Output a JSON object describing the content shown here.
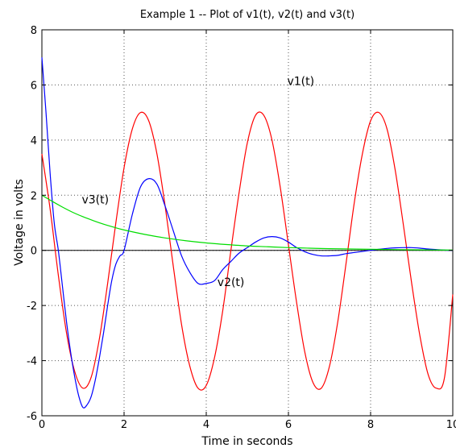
{
  "chart_data": {
    "type": "line",
    "title": "Example 1 -- Plot of v1(t), v2(t) and v3(t)",
    "xlabel": "Time in seconds",
    "ylabel": "Voltage in volts",
    "xlim": [
      0,
      10
    ],
    "ylim": [
      -6,
      8
    ],
    "xticks": [
      0,
      2,
      4,
      6,
      8,
      10
    ],
    "yticks": [
      -6,
      -4,
      -2,
      0,
      2,
      4,
      6,
      8
    ],
    "grid": true,
    "zero_line": true,
    "series": [
      {
        "name": "v1(t)",
        "color": "#ff0000",
        "x": [
          0,
          0.2,
          0.4,
          0.6,
          0.8,
          1.0,
          1.2,
          1.4,
          1.6,
          1.8,
          2.0,
          2.2,
          2.4,
          2.6,
          2.8,
          3.0,
          3.2,
          3.4,
          3.6,
          3.8,
          4.0,
          4.2,
          4.4,
          4.6,
          4.8,
          5.0,
          5.2,
          5.4,
          5.6,
          5.8,
          6.0,
          6.2,
          6.4,
          6.6,
          6.8,
          7.0,
          7.2,
          7.4,
          7.6,
          7.8,
          8.0,
          8.2,
          8.4,
          8.6,
          8.8,
          9.0,
          9.2,
          9.4,
          9.6,
          9.8,
          10.0
        ],
        "y": [
          3.5,
          1.5,
          -0.9,
          -3.0,
          -4.4,
          -5.0,
          -4.6,
          -3.2,
          -1.2,
          1.0,
          3.0,
          4.4,
          5.0,
          4.7,
          3.5,
          1.6,
          -0.6,
          -2.7,
          -4.2,
          -5.0,
          -4.9,
          -3.9,
          -2.2,
          0.0,
          2.1,
          3.9,
          4.9,
          4.9,
          4.0,
          2.3,
          0.2,
          -1.9,
          -3.7,
          -4.8,
          -5.0,
          -4.2,
          -2.6,
          -0.5,
          1.7,
          3.5,
          4.7,
          5.0,
          4.4,
          2.9,
          0.9,
          -1.2,
          -3.1,
          -4.5,
          -5.0,
          -4.6,
          -1.6
        ]
      },
      {
        "name": "v2(t)",
        "color": "#0000ff",
        "x": [
          0,
          0.1,
          0.2,
          0.3,
          0.4,
          0.5,
          0.6,
          0.7,
          0.8,
          0.9,
          1.0,
          1.1,
          1.2,
          1.3,
          1.4,
          1.5,
          1.6,
          1.7,
          1.8,
          1.9,
          2.0,
          2.2,
          2.4,
          2.6,
          2.8,
          3.0,
          3.2,
          3.4,
          3.6,
          3.8,
          4.0,
          4.2,
          4.4,
          4.6,
          4.8,
          5.0,
          5.2,
          5.4,
          5.6,
          5.8,
          6.0,
          6.2,
          6.4,
          6.6,
          6.8,
          7.0,
          7.2,
          7.4,
          7.6,
          7.8,
          8.0,
          8.2,
          8.4,
          8.6,
          8.8,
          9.0,
          9.2,
          9.4,
          9.6,
          9.8,
          10.0
        ],
        "y": [
          7.0,
          5.0,
          2.8,
          1.0,
          0.0,
          -1.3,
          -2.6,
          -3.7,
          -4.6,
          -5.3,
          -5.7,
          -5.6,
          -5.3,
          -4.7,
          -3.9,
          -3.0,
          -2.0,
          -1.1,
          -0.5,
          -0.2,
          0.0,
          1.3,
          2.3,
          2.6,
          2.4,
          1.6,
          0.7,
          -0.2,
          -0.8,
          -1.2,
          -1.2,
          -1.1,
          -0.7,
          -0.4,
          -0.1,
          0.1,
          0.3,
          0.45,
          0.5,
          0.45,
          0.3,
          0.1,
          -0.05,
          -0.15,
          -0.2,
          -0.2,
          -0.18,
          -0.12,
          -0.08,
          -0.04,
          0.0,
          0.04,
          0.07,
          0.09,
          0.1,
          0.1,
          0.08,
          0.05,
          0.03,
          0.01,
          0.0
        ]
      },
      {
        "name": "v3(t)",
        "color": "#00dd00",
        "x": [
          0,
          0.25,
          0.5,
          0.75,
          1.0,
          1.25,
          1.5,
          1.75,
          2.0,
          2.5,
          3.0,
          3.5,
          4.0,
          4.5,
          5.0,
          5.5,
          6.0,
          6.5,
          7.0,
          7.5,
          8.0,
          8.5,
          9.0,
          9.5,
          10.0
        ],
        "y": [
          2.0,
          1.78,
          1.57,
          1.38,
          1.22,
          1.08,
          0.95,
          0.84,
          0.74,
          0.58,
          0.45,
          0.35,
          0.27,
          0.21,
          0.16,
          0.13,
          0.1,
          0.08,
          0.06,
          0.05,
          0.04,
          0.03,
          0.02,
          0.015,
          0.01
        ]
      }
    ],
    "annotations": [
      {
        "text": "v1(t)",
        "x": 6.3,
        "y": 6.0
      },
      {
        "text": "v3(t)",
        "x": 1.3,
        "y": 1.7
      },
      {
        "text": "v2(t)",
        "x": 4.6,
        "y": -1.3
      }
    ]
  }
}
